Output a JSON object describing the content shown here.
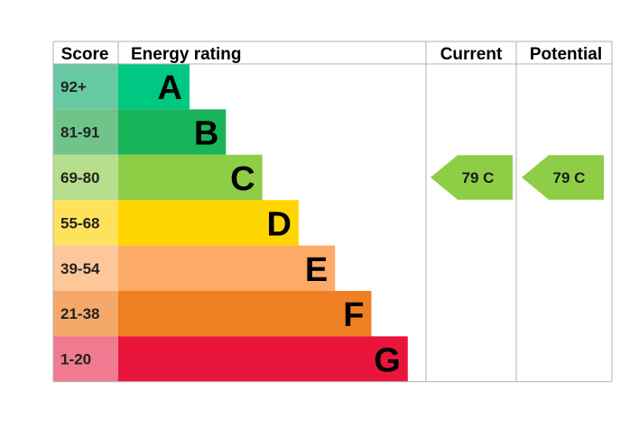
{
  "chart_data": {
    "type": "bar",
    "headers": {
      "score": "Score",
      "energy_rating": "Energy rating",
      "current": "Current",
      "potential": "Potential"
    },
    "bands": [
      {
        "score": "92+",
        "letter": "A",
        "color": "#00c781",
        "score_bg": "#67c9a4",
        "value": 1
      },
      {
        "score": "81-91",
        "letter": "B",
        "color": "#19b459",
        "score_bg": "#70c489",
        "value": 2
      },
      {
        "score": "69-80",
        "letter": "C",
        "color": "#8dce46",
        "score_bg": "#b6de8c",
        "value": 3
      },
      {
        "score": "55-68",
        "letter": "D",
        "color": "#ffd500",
        "score_bg": "#ffe25c",
        "value": 4
      },
      {
        "score": "39-54",
        "letter": "E",
        "color": "#fcaa65",
        "score_bg": "#fdc79a",
        "value": 5
      },
      {
        "score": "21-38",
        "letter": "F",
        "color": "#ef8023",
        "score_bg": "#f4a96a",
        "value": 6
      },
      {
        "score": "1-20",
        "letter": "G",
        "color": "#e9153b",
        "score_bg": "#f07a8f",
        "value": 7
      }
    ],
    "current": {
      "score": 79,
      "letter": "C",
      "label": "79  C",
      "color": "#8dce46"
    },
    "potential": {
      "score": 79,
      "letter": "C",
      "label": "79  C",
      "color": "#8dce46"
    },
    "grid_color": "#b0b0b0"
  }
}
